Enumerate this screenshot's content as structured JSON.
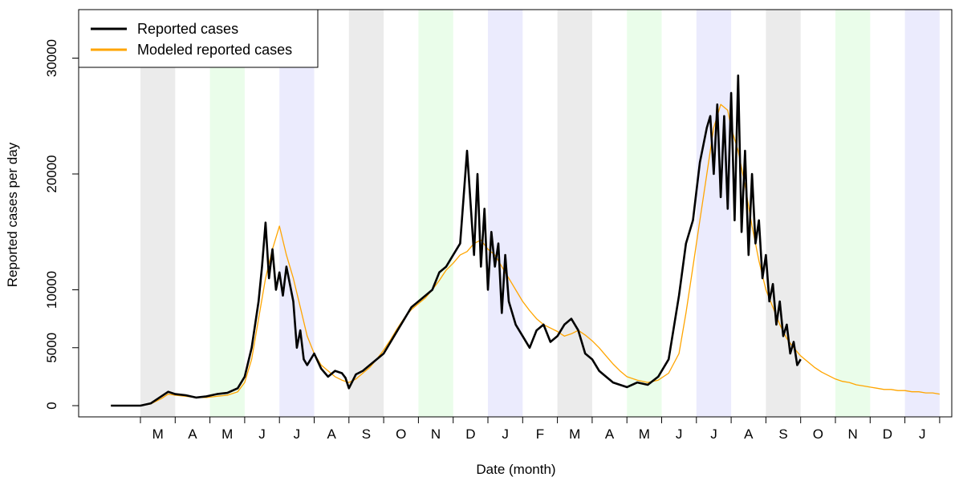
{
  "chart_data": {
    "type": "line",
    "title": "",
    "xlabel": "Date (month)",
    "ylabel": "Reported cases per day",
    "ylim": [
      -500,
      34000
    ],
    "yticks": [
      0,
      5000,
      10000,
      20000,
      30000
    ],
    "grid": false,
    "legend": {
      "placement": "top-left",
      "entries": [
        {
          "label": "Reported cases",
          "color": "#000000"
        },
        {
          "label": "Modeled reported cases",
          "color": "#FFA500"
        }
      ]
    },
    "months": [
      "M",
      "A",
      "M",
      "J",
      "J",
      "A",
      "S",
      "O",
      "N",
      "D",
      "J",
      "F",
      "M",
      "A",
      "M",
      "J",
      "J",
      "A",
      "S",
      "O",
      "N",
      "D",
      "J"
    ],
    "x_unit": "month index (0 = start of March)",
    "xlim": [
      -0.85,
      23.0
    ],
    "band_colors": {
      "grey": "#EBEBEB",
      "green": "#EAFDEA",
      "purple": "#EBEBFD"
    },
    "bands": [
      {
        "month_index": 0,
        "color": "grey"
      },
      {
        "month_index": 2,
        "color": "green"
      },
      {
        "month_index": 4,
        "color": "purple"
      },
      {
        "month_index": 6,
        "color": "grey"
      },
      {
        "month_index": 8,
        "color": "green"
      },
      {
        "month_index": 10,
        "color": "purple"
      },
      {
        "month_index": 12,
        "color": "grey"
      },
      {
        "month_index": 14,
        "color": "green"
      },
      {
        "month_index": 16,
        "color": "purple"
      },
      {
        "month_index": 18,
        "color": "grey"
      },
      {
        "month_index": 20,
        "color": "green"
      },
      {
        "month_index": 22,
        "color": "purple"
      }
    ],
    "series": [
      {
        "name": "Reported cases",
        "color": "#000000",
        "x": [
          -0.85,
          -0.5,
          0.0,
          0.3,
          0.6,
          0.8,
          1.0,
          1.3,
          1.6,
          1.9,
          2.2,
          2.5,
          2.8,
          3.0,
          3.2,
          3.4,
          3.5,
          3.6,
          3.7,
          3.8,
          3.9,
          4.0,
          4.1,
          4.2,
          4.3,
          4.4,
          4.5,
          4.6,
          4.7,
          4.8,
          5.0,
          5.2,
          5.4,
          5.6,
          5.8,
          5.9,
          6.0,
          6.2,
          6.4,
          6.6,
          6.8,
          7.0,
          7.2,
          7.4,
          7.6,
          7.8,
          8.0,
          8.2,
          8.4,
          8.6,
          8.8,
          9.0,
          9.2,
          9.4,
          9.6,
          9.7,
          9.8,
          9.9,
          10.0,
          10.1,
          10.2,
          10.3,
          10.4,
          10.5,
          10.6,
          10.8,
          11.0,
          11.2,
          11.4,
          11.6,
          11.8,
          12.0,
          12.2,
          12.4,
          12.6,
          12.8,
          13.0,
          13.2,
          13.4,
          13.6,
          13.8,
          14.0,
          14.3,
          14.6,
          14.9,
          15.2,
          15.5,
          15.7,
          15.9,
          16.1,
          16.3,
          16.4,
          16.5,
          16.6,
          16.7,
          16.8,
          16.9,
          17.0,
          17.1,
          17.2,
          17.3,
          17.4,
          17.5,
          17.6,
          17.7,
          17.8,
          17.9,
          18.0,
          18.1,
          18.2,
          18.3,
          18.4,
          18.5,
          18.6,
          18.7,
          18.8,
          18.9,
          19.0
        ],
        "values": [
          0,
          0,
          0,
          200,
          800,
          1200,
          1000,
          900,
          700,
          800,
          1000,
          1100,
          1500,
          2500,
          5000,
          9000,
          12000,
          15800,
          11000,
          13500,
          10000,
          11500,
          9500,
          12000,
          10500,
          9000,
          5000,
          6500,
          4000,
          3500,
          4500,
          3200,
          2500,
          3000,
          2800,
          2400,
          1500,
          2700,
          3000,
          3500,
          4000,
          4500,
          5500,
          6500,
          7500,
          8500,
          9000,
          9500,
          10000,
          11500,
          12000,
          13000,
          14000,
          22000,
          13000,
          20000,
          12000,
          17000,
          10000,
          15000,
          12000,
          14000,
          8000,
          13000,
          9000,
          7000,
          6000,
          5000,
          6500,
          7000,
          5500,
          6000,
          7000,
          7500,
          6500,
          4500,
          4000,
          3000,
          2500,
          2000,
          1800,
          1600,
          2000,
          1800,
          2500,
          4000,
          9500,
          14000,
          16000,
          21000,
          24000,
          25000,
          20000,
          26000,
          18000,
          25000,
          17000,
          27000,
          16000,
          28500,
          15000,
          22000,
          13000,
          20000,
          14000,
          16000,
          11000,
          13000,
          9000,
          10500,
          7000,
          9000,
          6000,
          7000,
          4500,
          5500,
          3500,
          4000
        ]
      },
      {
        "name": "Modeled reported cases",
        "color": "#FFA500",
        "x": [
          -0.85,
          -0.5,
          0.0,
          0.3,
          0.6,
          0.8,
          1.0,
          1.3,
          1.6,
          1.9,
          2.2,
          2.5,
          2.8,
          3.0,
          3.2,
          3.4,
          3.6,
          3.8,
          4.0,
          4.2,
          4.4,
          4.6,
          4.8,
          5.0,
          5.2,
          5.4,
          5.6,
          5.8,
          6.0,
          6.2,
          6.4,
          6.6,
          6.8,
          7.0,
          7.2,
          7.4,
          7.6,
          7.8,
          8.0,
          8.2,
          8.4,
          8.6,
          8.8,
          9.0,
          9.2,
          9.4,
          9.6,
          9.8,
          10.0,
          10.2,
          10.4,
          10.6,
          10.8,
          11.0,
          11.2,
          11.4,
          11.6,
          11.8,
          12.0,
          12.2,
          12.4,
          12.6,
          12.8,
          13.0,
          13.2,
          13.4,
          13.6,
          13.8,
          14.0,
          14.3,
          14.6,
          14.9,
          15.2,
          15.5,
          15.7,
          15.9,
          16.1,
          16.3,
          16.5,
          16.7,
          16.9,
          17.0,
          17.1,
          17.2,
          17.4,
          17.6,
          17.8,
          18.0,
          18.2,
          18.4,
          18.6,
          18.8,
          19.0,
          19.2,
          19.4,
          19.6,
          19.8,
          20.0,
          20.2,
          20.4,
          20.6,
          20.8,
          21.0,
          21.2,
          21.4,
          21.6,
          21.8,
          22.0,
          22.2,
          22.4,
          22.6,
          22.8,
          23.0
        ],
        "values": [
          0,
          0,
          0,
          150,
          600,
          1000,
          900,
          800,
          700,
          700,
          800,
          900,
          1200,
          2000,
          4000,
          7500,
          11000,
          13500,
          15500,
          13000,
          11000,
          8500,
          6000,
          4500,
          3500,
          3000,
          2500,
          2200,
          2000,
          2300,
          2800,
          3300,
          4000,
          4800,
          5700,
          6700,
          7600,
          8300,
          8800,
          9300,
          10000,
          10800,
          11700,
          12300,
          13000,
          13300,
          14000,
          14300,
          13500,
          13000,
          12000,
          11000,
          10000,
          9000,
          8200,
          7500,
          7000,
          6700,
          6400,
          6000,
          6200,
          6500,
          6100,
          5600,
          5000,
          4300,
          3600,
          3000,
          2500,
          2200,
          2000,
          2200,
          2800,
          4500,
          8000,
          12000,
          16000,
          20000,
          24000,
          26000,
          25500,
          24000,
          23000,
          22000,
          19000,
          15500,
          12500,
          10000,
          8500,
          7000,
          5800,
          5000,
          4300,
          3800,
          3300,
          2900,
          2600,
          2300,
          2100,
          2000,
          1800,
          1700,
          1600,
          1500,
          1400,
          1400,
          1300,
          1300,
          1200,
          1200,
          1100,
          1100,
          1000
        ]
      }
    ]
  }
}
